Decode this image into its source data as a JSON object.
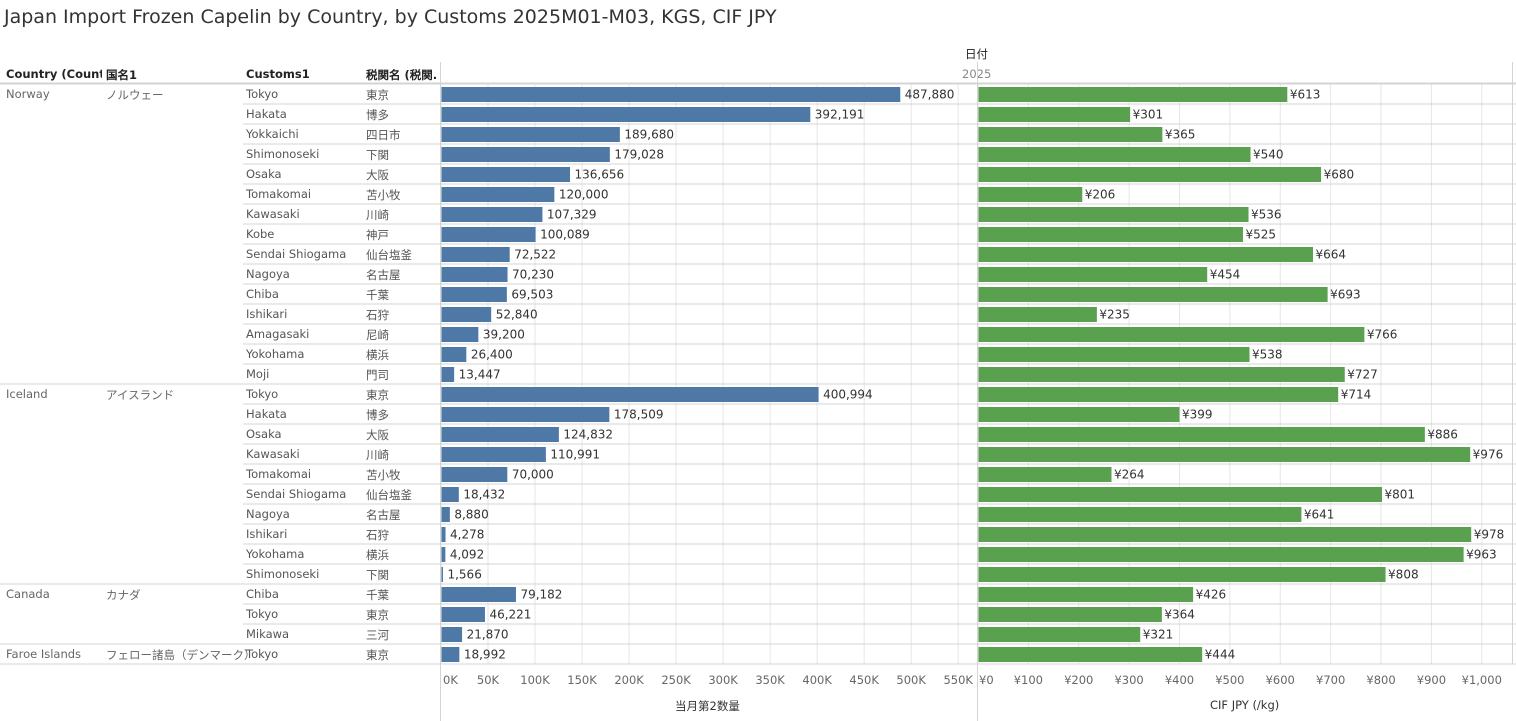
{
  "title": "Japan Import Frozen Capelin by Country, by Customs 2025M01-M03, KGS, CIF JPY",
  "headers": {
    "country": "Country (Count..",
    "kuni": "国名1",
    "customs": "Customs1",
    "zeikan": "税関名 (税関..",
    "date_group": "日付",
    "year": "2025"
  },
  "rows": [
    {
      "country": "Norway",
      "kuni": "ノルウェー",
      "customs": "Tokyo",
      "zeikan": "東京",
      "qty": 487880,
      "qty_label": "487,880",
      "cif": 613,
      "cif_label": "¥613"
    },
    {
      "country": "",
      "kuni": "",
      "customs": "Hakata",
      "zeikan": "博多",
      "qty": 392191,
      "qty_label": "392,191",
      "cif": 301,
      "cif_label": "¥301"
    },
    {
      "country": "",
      "kuni": "",
      "customs": "Yokkaichi",
      "zeikan": "四日市",
      "qty": 189680,
      "qty_label": "189,680",
      "cif": 365,
      "cif_label": "¥365"
    },
    {
      "country": "",
      "kuni": "",
      "customs": "Shimonoseki",
      "zeikan": "下関",
      "qty": 179028,
      "qty_label": "179,028",
      "cif": 540,
      "cif_label": "¥540"
    },
    {
      "country": "",
      "kuni": "",
      "customs": "Osaka",
      "zeikan": "大阪",
      "qty": 136656,
      "qty_label": "136,656",
      "cif": 680,
      "cif_label": "¥680"
    },
    {
      "country": "",
      "kuni": "",
      "customs": "Tomakomai",
      "zeikan": "苫小牧",
      "qty": 120000,
      "qty_label": "120,000",
      "cif": 206,
      "cif_label": "¥206"
    },
    {
      "country": "",
      "kuni": "",
      "customs": "Kawasaki",
      "zeikan": "川崎",
      "qty": 107329,
      "qty_label": "107,329",
      "cif": 536,
      "cif_label": "¥536"
    },
    {
      "country": "",
      "kuni": "",
      "customs": "Kobe",
      "zeikan": "神戸",
      "qty": 100089,
      "qty_label": "100,089",
      "cif": 525,
      "cif_label": "¥525"
    },
    {
      "country": "",
      "kuni": "",
      "customs": "Sendai Shiogama",
      "zeikan": "仙台塩釜",
      "qty": 72522,
      "qty_label": "72,522",
      "cif": 664,
      "cif_label": "¥664"
    },
    {
      "country": "",
      "kuni": "",
      "customs": "Nagoya",
      "zeikan": "名古屋",
      "qty": 70230,
      "qty_label": "70,230",
      "cif": 454,
      "cif_label": "¥454"
    },
    {
      "country": "",
      "kuni": "",
      "customs": "Chiba",
      "zeikan": "千葉",
      "qty": 69503,
      "qty_label": "69,503",
      "cif": 693,
      "cif_label": "¥693"
    },
    {
      "country": "",
      "kuni": "",
      "customs": "Ishikari",
      "zeikan": "石狩",
      "qty": 52840,
      "qty_label": "52,840",
      "cif": 235,
      "cif_label": "¥235"
    },
    {
      "country": "",
      "kuni": "",
      "customs": "Amagasaki",
      "zeikan": "尼崎",
      "qty": 39200,
      "qty_label": "39,200",
      "cif": 766,
      "cif_label": "¥766"
    },
    {
      "country": "",
      "kuni": "",
      "customs": "Yokohama",
      "zeikan": "横浜",
      "qty": 26400,
      "qty_label": "26,400",
      "cif": 538,
      "cif_label": "¥538"
    },
    {
      "country": "",
      "kuni": "",
      "customs": "Moji",
      "zeikan": "門司",
      "qty": 13447,
      "qty_label": "13,447",
      "cif": 727,
      "cif_label": "¥727"
    },
    {
      "country": "Iceland",
      "kuni": "アイスランド",
      "customs": "Tokyo",
      "zeikan": "東京",
      "qty": 400994,
      "qty_label": "400,994",
      "cif": 714,
      "cif_label": "¥714"
    },
    {
      "country": "",
      "kuni": "",
      "customs": "Hakata",
      "zeikan": "博多",
      "qty": 178509,
      "qty_label": "178,509",
      "cif": 399,
      "cif_label": "¥399"
    },
    {
      "country": "",
      "kuni": "",
      "customs": "Osaka",
      "zeikan": "大阪",
      "qty": 124832,
      "qty_label": "124,832",
      "cif": 886,
      "cif_label": "¥886"
    },
    {
      "country": "",
      "kuni": "",
      "customs": "Kawasaki",
      "zeikan": "川崎",
      "qty": 110991,
      "qty_label": "110,991",
      "cif": 976,
      "cif_label": "¥976"
    },
    {
      "country": "",
      "kuni": "",
      "customs": "Tomakomai",
      "zeikan": "苫小牧",
      "qty": 70000,
      "qty_label": "70,000",
      "cif": 264,
      "cif_label": "¥264"
    },
    {
      "country": "",
      "kuni": "",
      "customs": "Sendai Shiogama",
      "zeikan": "仙台塩釜",
      "qty": 18432,
      "qty_label": "18,432",
      "cif": 801,
      "cif_label": "¥801"
    },
    {
      "country": "",
      "kuni": "",
      "customs": "Nagoya",
      "zeikan": "名古屋",
      "qty": 8880,
      "qty_label": "8,880",
      "cif": 641,
      "cif_label": "¥641"
    },
    {
      "country": "",
      "kuni": "",
      "customs": "Ishikari",
      "zeikan": "石狩",
      "qty": 4278,
      "qty_label": "4,278",
      "cif": 978,
      "cif_label": "¥978"
    },
    {
      "country": "",
      "kuni": "",
      "customs": "Yokohama",
      "zeikan": "横浜",
      "qty": 4092,
      "qty_label": "4,092",
      "cif": 963,
      "cif_label": "¥963"
    },
    {
      "country": "",
      "kuni": "",
      "customs": "Shimonoseki",
      "zeikan": "下関",
      "qty": 1566,
      "qty_label": "1,566",
      "cif": 808,
      "cif_label": "¥808"
    },
    {
      "country": "Canada",
      "kuni": "カナダ",
      "customs": "Chiba",
      "zeikan": "千葉",
      "qty": 79182,
      "qty_label": "79,182",
      "cif": 426,
      "cif_label": "¥426"
    },
    {
      "country": "",
      "kuni": "",
      "customs": "Tokyo",
      "zeikan": "東京",
      "qty": 46221,
      "qty_label": "46,221",
      "cif": 364,
      "cif_label": "¥364"
    },
    {
      "country": "",
      "kuni": "",
      "customs": "Mikawa",
      "zeikan": "三河",
      "qty": 21870,
      "qty_label": "21,870",
      "cif": 321,
      "cif_label": "¥321"
    },
    {
      "country": "Faroe Islands",
      "kuni": "フェロー諸島（デンマーク）",
      "customs": "Tokyo",
      "zeikan": "東京",
      "qty": 18992,
      "qty_label": "18,992",
      "cif": 444,
      "cif_label": "¥444"
    }
  ],
  "group_breaks": [
    15,
    25,
    28
  ],
  "colors": {
    "qty_bar": "#4e79a7",
    "cif_bar": "#59a14f",
    "grid": "#e6e6e6",
    "rule": "#d4d4d4"
  },
  "chart_data": [
    {
      "type": "bar",
      "orientation": "horizontal",
      "xlabel": "当月第2数量",
      "xlim": [
        0,
        570000
      ],
      "ticks": [
        0,
        50000,
        100000,
        150000,
        200000,
        250000,
        300000,
        350000,
        400000,
        450000,
        500000,
        550000
      ],
      "tick_labels": [
        "0K",
        "50K",
        "100K",
        "150K",
        "200K",
        "250K",
        "300K",
        "350K",
        "400K",
        "450K",
        "500K",
        "550K"
      ],
      "series_key": "qty"
    },
    {
      "type": "bar",
      "orientation": "horizontal",
      "xlabel": "CIF JPY (/kg)",
      "xlim": [
        0,
        1060
      ],
      "ticks": [
        0,
        100,
        200,
        300,
        400,
        500,
        600,
        700,
        800,
        900,
        1000
      ],
      "tick_labels": [
        "¥0",
        "¥100",
        "¥200",
        "¥300",
        "¥400",
        "¥500",
        "¥600",
        "¥700",
        "¥800",
        "¥900",
        "¥1,000"
      ],
      "series_key": "cif"
    }
  ]
}
